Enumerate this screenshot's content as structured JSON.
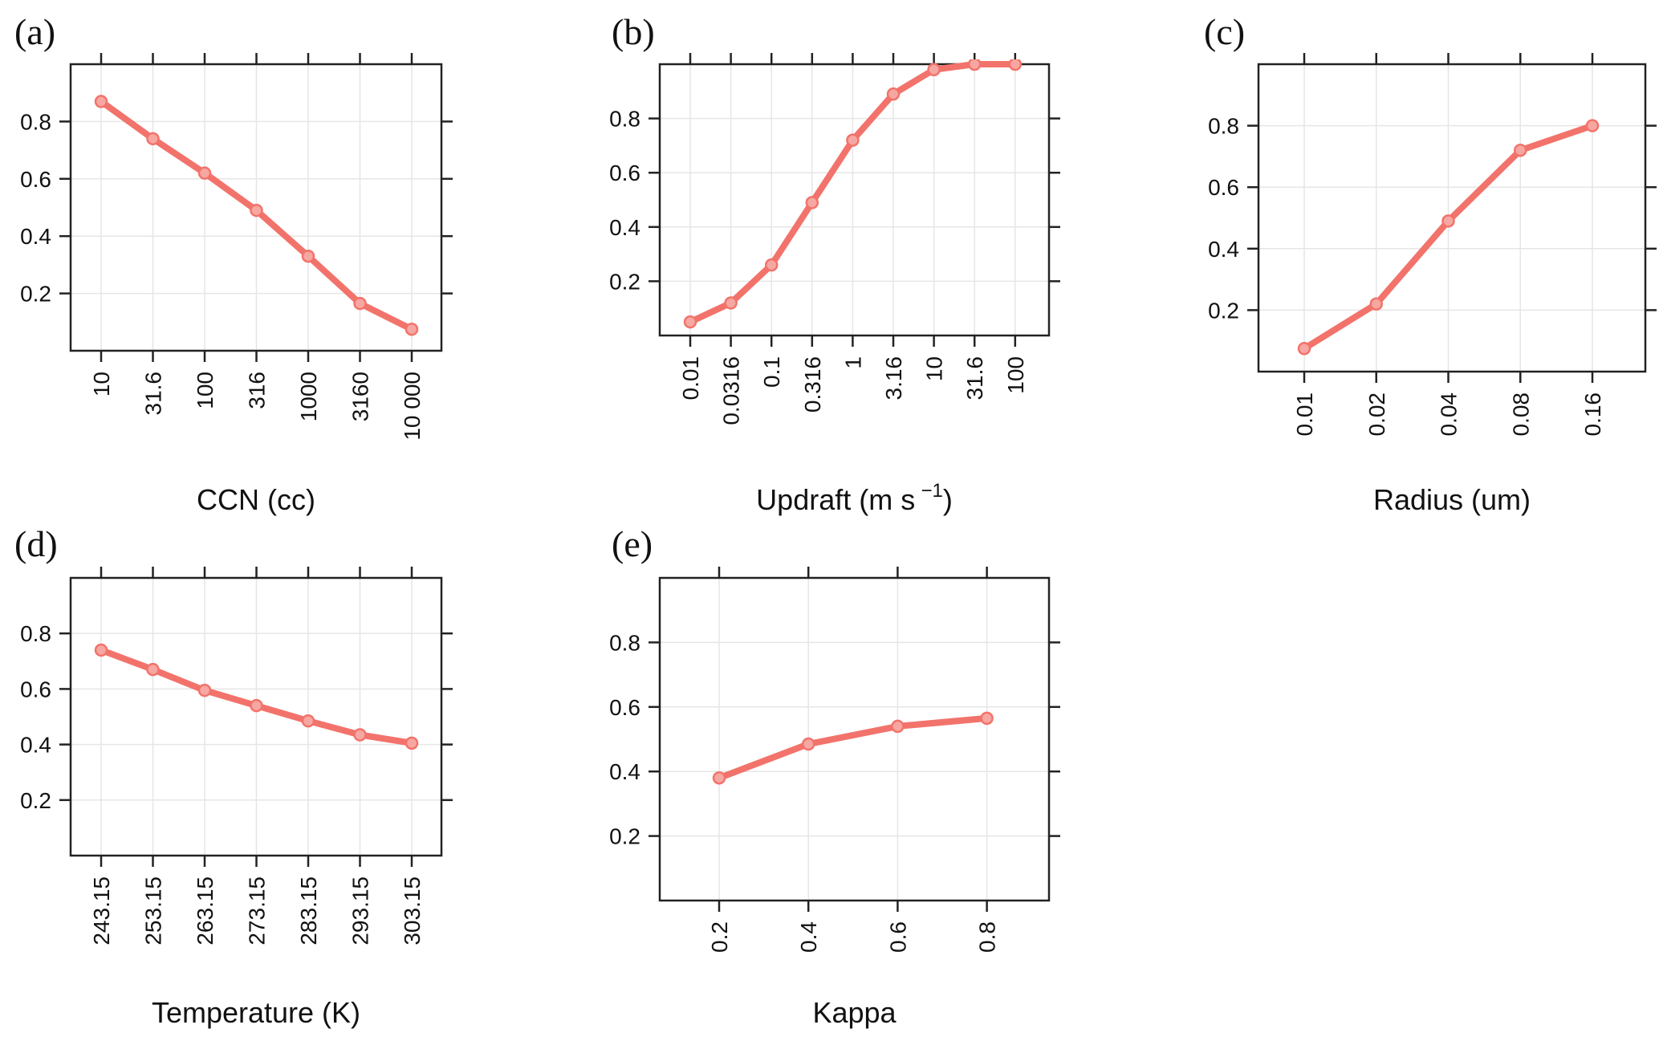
{
  "style": {
    "line_color": "#f2736b",
    "point_fill": "#f7a7a1",
    "grid_color": "#e6e6e6",
    "axis_color": "#222222"
  },
  "chart_data": [
    {
      "panel": "(a)",
      "type": "line",
      "x_scale": "log",
      "categories": [
        "10",
        "31.6",
        "100",
        "316",
        "1000",
        "3160",
        "10 000"
      ],
      "values": [
        0.87,
        0.74,
        0.62,
        0.49,
        0.33,
        0.165,
        0.075
      ],
      "xlabel": "CCN (cc)",
      "ylabel": "",
      "ylim": [
        0,
        1
      ],
      "yticks": [
        0.2,
        0.4,
        0.6,
        0.8
      ],
      "grid": true
    },
    {
      "panel": "(b)",
      "type": "line",
      "x_scale": "log",
      "categories": [
        "0.01",
        "0.0316",
        "0.1",
        "0.316",
        "1",
        "3.16",
        "10",
        "31.6",
        "100"
      ],
      "values": [
        0.05,
        0.12,
        0.26,
        0.49,
        0.72,
        0.89,
        0.98,
        1.0,
        1.0
      ],
      "xlabel": "Updraft (m s",
      "xlabel_sup": "−1",
      "xlabel_end": ")",
      "ylabel": "",
      "ylim": [
        0,
        1
      ],
      "yticks": [
        0.2,
        0.4,
        0.6,
        0.8
      ],
      "grid": true
    },
    {
      "panel": "(c)",
      "type": "line",
      "x_scale": "log",
      "categories": [
        "0.01",
        "0.02",
        "0.04",
        "0.08",
        "0.16"
      ],
      "values": [
        0.075,
        0.22,
        0.49,
        0.72,
        0.8
      ],
      "xlabel": "Radius (um)",
      "ylabel": "",
      "ylim": [
        0,
        1
      ],
      "yticks": [
        0.2,
        0.4,
        0.6,
        0.8
      ],
      "grid": true
    },
    {
      "panel": "(d)",
      "type": "line",
      "x_scale": "linear",
      "categories": [
        "243.15",
        "253.15",
        "263.15",
        "273.15",
        "283.15",
        "293.15",
        "303.15"
      ],
      "values": [
        0.74,
        0.67,
        0.595,
        0.54,
        0.485,
        0.435,
        0.405
      ],
      "xlabel": "Temperature (K)",
      "ylabel": "",
      "ylim": [
        0,
        1
      ],
      "yticks": [
        0.2,
        0.4,
        0.6,
        0.8
      ],
      "grid": true
    },
    {
      "panel": "(e)",
      "type": "line",
      "x_scale": "linear",
      "categories": [
        "0.2",
        "0.4",
        "0.6",
        "0.8"
      ],
      "values": [
        0.38,
        0.485,
        0.54,
        0.565
      ],
      "xlabel": "Kappa",
      "ylabel": "",
      "ylim": [
        0,
        1
      ],
      "yticks": [
        0.2,
        0.4,
        0.6,
        0.8
      ],
      "grid": true
    }
  ]
}
